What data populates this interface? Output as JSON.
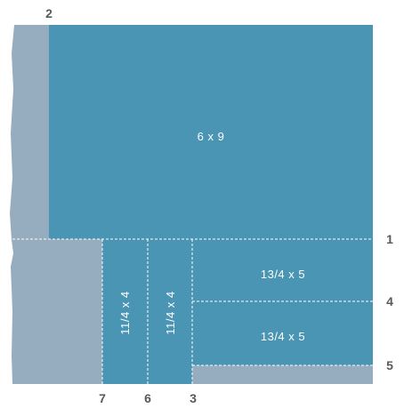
{
  "colors": {
    "piece": "#4a94b4",
    "waste": "#95adbf",
    "label": "#555a5e",
    "cut_line": "#ffffff"
  },
  "pieces": {
    "large": "6 x 9",
    "strip_a": "11/4 x 4",
    "strip_b": "11/4 x 4",
    "small_top": "13/4 x 5",
    "small_bottom": "13/4 x 5"
  },
  "cuts": {
    "c1": "1",
    "c2": "2",
    "c3": "3",
    "c4": "4",
    "c5": "5",
    "c6": "6",
    "c7": "7"
  }
}
